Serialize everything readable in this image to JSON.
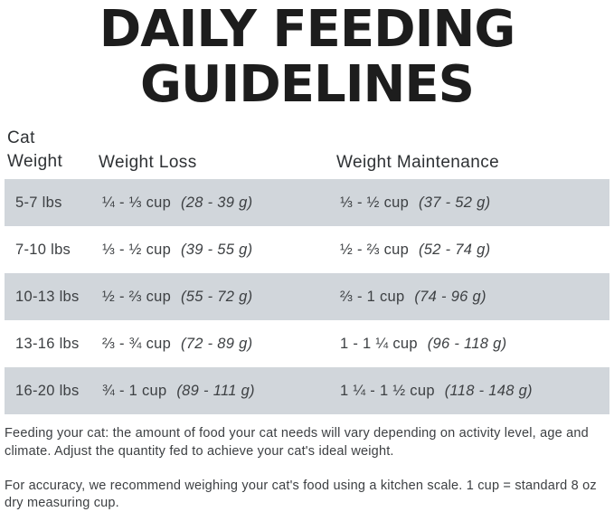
{
  "title": {
    "line1": "DAILY FEEDING",
    "line2": "GUIDELINES"
  },
  "table": {
    "headers": {
      "cat_weight": "Cat Weight",
      "weight_loss": "Weight Loss",
      "weight_maintenance": "Weight Maintenance"
    },
    "rows": [
      {
        "weight": "5-7 lbs",
        "loss_cups": "¼ - ⅓ cup",
        "loss_grams": "(28 - 39 g)",
        "maint_cups": "⅓ - ½ cup",
        "maint_grams": "(37 - 52 g)"
      },
      {
        "weight": "7-10 lbs",
        "loss_cups": "⅓ - ½ cup",
        "loss_grams": "(39 - 55 g)",
        "maint_cups": "½ - ⅔ cup",
        "maint_grams": "(52 - 74 g)"
      },
      {
        "weight": "10-13 lbs",
        "loss_cups": "½ - ⅔ cup",
        "loss_grams": "(55 - 72 g)",
        "maint_cups": "⅔ - 1 cup",
        "maint_grams": "(74 - 96 g)"
      },
      {
        "weight": "13-16 lbs",
        "loss_cups": "⅔ - ¾ cup",
        "loss_grams": "(72 - 89 g)",
        "maint_cups": "1 - 1 ¼ cup",
        "maint_grams": "(96 - 118 g)"
      },
      {
        "weight": "16-20 lbs",
        "loss_cups": "¾ - 1 cup",
        "loss_grams": "(89 - 111 g)",
        "maint_cups": "1 ¼ - 1 ½ cup",
        "maint_grams": "(118 - 148 g)"
      }
    ]
  },
  "notes": [
    "Feeding your cat: the amount of food your cat needs will vary depending on activity level, age and climate. Adjust the quantity fed to achieve your cat's ideal weight.",
    "For accuracy, we recommend weighing your cat's food using a kitchen scale. 1 cup = standard 8 oz dry measuring cup."
  ],
  "colors": {
    "row_stripe": "#d1d6db",
    "title_text": "#1d1d1d",
    "body_text": "#3d4043"
  }
}
